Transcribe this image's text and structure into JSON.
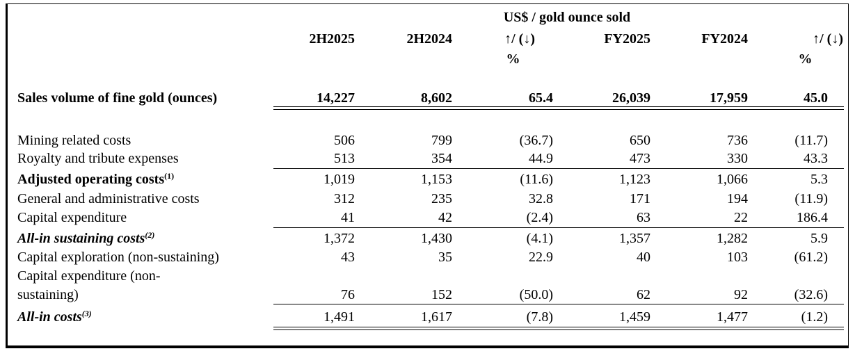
{
  "header": {
    "unit_label": "US$ / gold ounce sold",
    "columns": [
      "2H2025",
      "2H2024",
      "↑/ (↓)",
      "FY2025",
      "FY2024",
      "↑/ (↓)"
    ],
    "pct_label": "%"
  },
  "sales": {
    "label": "Sales volume of fine gold (ounces)",
    "values": [
      "14,227",
      "8,602",
      "65.4",
      "26,039",
      "17,959",
      "45.0"
    ]
  },
  "rows": [
    {
      "label": "Mining related costs",
      "values": [
        "506",
        "799",
        "(36.7)",
        "650",
        "736",
        "(11.7)"
      ]
    },
    {
      "label": "Royalty and tribute expenses",
      "values": [
        "513",
        "354",
        "44.9",
        "473",
        "330",
        "43.3"
      ]
    },
    {
      "label": "Adjusted operating costs",
      "note": "(1)",
      "values": [
        "1,019",
        "1,153",
        "(11.6)",
        "1,123",
        "1,066",
        "5.3"
      ]
    },
    {
      "label": "General and administrative costs",
      "values": [
        "312",
        "235",
        "32.8",
        "171",
        "194",
        "(11.9)"
      ]
    },
    {
      "label": "Capital expenditure",
      "values": [
        "41",
        "42",
        "(2.4)",
        "63",
        "22",
        "186.4"
      ]
    },
    {
      "label": "All-in sustaining costs",
      "note": "(2)",
      "values": [
        "1,372",
        "1,430",
        "(4.1)",
        "1,357",
        "1,282",
        "5.9"
      ]
    },
    {
      "label": "Capital exploration (non-sustaining)",
      "values": [
        "43",
        "35",
        "22.9",
        "40",
        "103",
        "(61.2)"
      ]
    },
    {
      "label": "Capital expenditure (non-",
      "label2": "sustaining)",
      "values": [
        "76",
        "152",
        "(50.0)",
        "62",
        "92",
        "(32.6)"
      ]
    },
    {
      "label": "All-in costs",
      "note": "(3)",
      "values": [
        "1,491",
        "1,617",
        "(7.8)",
        "1,459",
        "1,477",
        "(1.2)"
      ]
    }
  ]
}
